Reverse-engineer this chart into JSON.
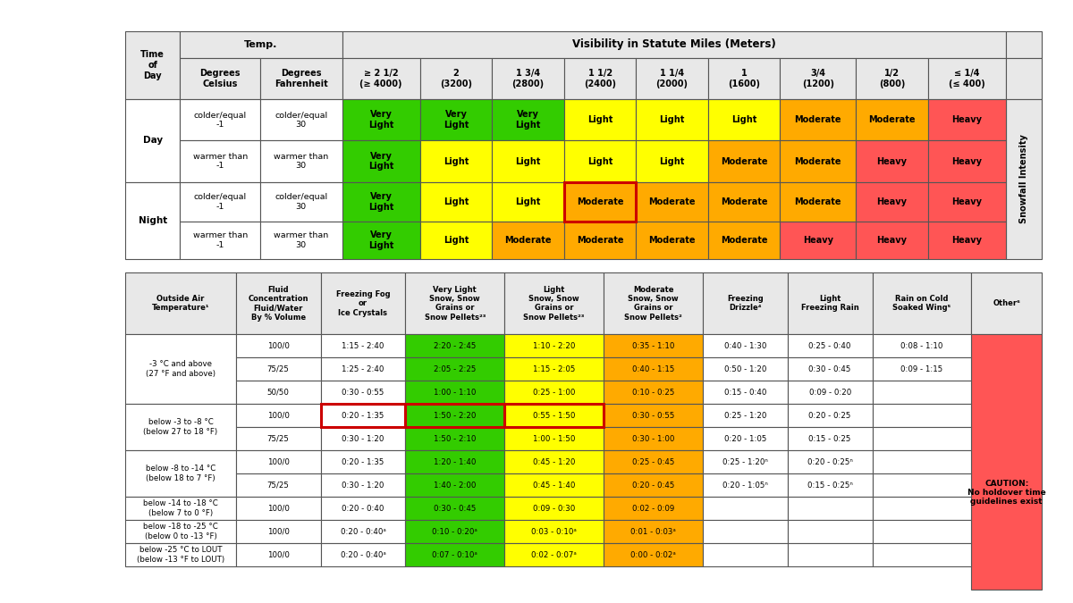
{
  "t1_rows": [
    [
      "Day",
      "colder/equal\n-1",
      "colder/equal\n30",
      "Very\nLight",
      "Very\nLight",
      "Very\nLight",
      "Light",
      "Light",
      "Light",
      "Moderate",
      "Moderate",
      "Heavy"
    ],
    [
      "Day",
      "warmer than\n-1",
      "warmer than\n30",
      "Very\nLight",
      "Light",
      "Light",
      "Light",
      "Light",
      "Moderate",
      "Moderate",
      "Heavy",
      "Heavy"
    ],
    [
      "Night",
      "colder/equal\n-1",
      "colder/equal\n30",
      "Very\nLight",
      "Light",
      "Light",
      "Moderate",
      "Moderate",
      "Moderate",
      "Moderate",
      "Heavy",
      "Heavy"
    ],
    [
      "Night",
      "warmer than\n-1",
      "warmer than\n30",
      "Very\nLight",
      "Light",
      "Moderate",
      "Moderate",
      "Moderate",
      "Moderate",
      "Heavy",
      "Heavy",
      "Heavy"
    ]
  ],
  "t1_colors": [
    [
      "w",
      "w",
      "w",
      "#33cc00",
      "#33cc00",
      "#33cc00",
      "#ffff00",
      "#ffff00",
      "#ffff00",
      "#ffaa00",
      "#ffaa00",
      "#ff5555"
    ],
    [
      "w",
      "w",
      "w",
      "#33cc00",
      "#ffff00",
      "#ffff00",
      "#ffff00",
      "#ffff00",
      "#ffaa00",
      "#ffaa00",
      "#ff5555",
      "#ff5555"
    ],
    [
      "w",
      "w",
      "w",
      "#33cc00",
      "#ffff00",
      "#ffff00",
      "#ffaa00",
      "#ffaa00",
      "#ffaa00",
      "#ffaa00",
      "#ff5555",
      "#ff5555"
    ],
    [
      "w",
      "w",
      "w",
      "#33cc00",
      "#ffff00",
      "#ffaa00",
      "#ffaa00",
      "#ffaa00",
      "#ffaa00",
      "#ff5555",
      "#ff5555",
      "#ff5555"
    ]
  ],
  "t1_highlight": [
    2,
    6
  ],
  "t2_headers": [
    "Outside Air\nTemperature¹",
    "Fluid\nConcentration\nFluid/Water\nBy % Volume",
    "Freezing Fog\nor\nIce Crystals",
    "Very Light\nSnow, Snow\nGrains or\nSnow Pellets²³",
    "Light\nSnow, Snow\nGrains or\nSnow Pellets²³",
    "Moderate\nSnow, Snow\nGrains or\nSnow Pellets²",
    "Freezing\nDrizzle⁴",
    "Light\nFreezing Rain",
    "Rain on Cold\nSoaked Wing⁵",
    "Other⁶"
  ],
  "t2_groups": [
    {
      "label": "-3 °C and above\n(27 °F and above)",
      "rows": [
        [
          "100/0",
          "1:15 - 2:40",
          "2:20 - 2:45",
          "1:10 - 2:20",
          "0:35 - 1:10",
          "0:40 - 1:30",
          "0:25 - 0:40",
          "0:08 - 1:10"
        ],
        [
          "75/25",
          "1:25 - 2:40",
          "2:05 - 2:25",
          "1:15 - 2:05",
          "0:40 - 1:15",
          "0:50 - 1:20",
          "0:30 - 0:45",
          "0:09 - 1:15"
        ],
        [
          "50/50",
          "0:30 - 0:55",
          "1:00 - 1:10",
          "0:25 - 1:00",
          "0:10 - 0:25",
          "0:15 - 0:40",
          "0:09 - 0:20",
          ""
        ]
      ],
      "colors": [
        [
          "w",
          "w",
          "#33cc00",
          "#ffff00",
          "#ffaa00",
          "w",
          "w",
          "w"
        ],
        [
          "w",
          "w",
          "#33cc00",
          "#ffff00",
          "#ffaa00",
          "w",
          "w",
          "w"
        ],
        [
          "w",
          "w",
          "#33cc00",
          "#ffff00",
          "#ffaa00",
          "w",
          "w",
          "w"
        ]
      ]
    },
    {
      "label": "below -3 to -8 °C\n(below 27 to 18 °F)",
      "rows": [
        [
          "100/0",
          "0:20 - 1:35",
          "1:50 - 2:20",
          "0:55 - 1:50",
          "0:30 - 0:55",
          "0:25 - 1:20",
          "0:20 - 0:25",
          ""
        ],
        [
          "75/25",
          "0:30 - 1:20",
          "1:50 - 2:10",
          "1:00 - 1:50",
          "0:30 - 1:00",
          "0:20 - 1:05",
          "0:15 - 0:25",
          ""
        ]
      ],
      "colors": [
        [
          "w",
          "w",
          "#33cc00",
          "#ffff00",
          "#ffaa00",
          "w",
          "w",
          "w"
        ],
        [
          "w",
          "w",
          "#33cc00",
          "#ffff00",
          "#ffaa00",
          "w",
          "w",
          "w"
        ]
      ],
      "highlight_row": 0
    },
    {
      "label": "below -8 to -14 °C\n(below 18 to 7 °F)",
      "rows": [
        [
          "100/0",
          "0:20 - 1:35",
          "1:20 - 1:40",
          "0:45 - 1:20",
          "0:25 - 0:45",
          "0:25 - 1:20ⁿ",
          "0:20 - 0:25ⁿ",
          ""
        ],
        [
          "75/25",
          "0:30 - 1:20",
          "1:40 - 2:00",
          "0:45 - 1:40",
          "0:20 - 0:45",
          "0:20 - 1:05ⁿ",
          "0:15 - 0:25ⁿ",
          ""
        ]
      ],
      "colors": [
        [
          "w",
          "w",
          "#33cc00",
          "#ffff00",
          "#ffaa00",
          "w",
          "w",
          "w"
        ],
        [
          "w",
          "w",
          "#33cc00",
          "#ffff00",
          "#ffaa00",
          "w",
          "w",
          "w"
        ]
      ]
    },
    {
      "label": "below -14 to -18 °C\n(below 7 to 0 °F)",
      "rows": [
        [
          "100/0",
          "0:20 - 0:40",
          "0:30 - 0:45",
          "0:09 - 0:30",
          "0:02 - 0:09",
          "",
          "",
          ""
        ]
      ],
      "colors": [
        [
          "w",
          "w",
          "#33cc00",
          "#ffff00",
          "#ffaa00",
          "w",
          "w",
          "w"
        ]
      ]
    },
    {
      "label": "below -18 to -25 °C\n(below 0 to -13 °F)",
      "rows": [
        [
          "100/0",
          "0:20 - 0:40ᵃ",
          "0:10 - 0:20ᵃ",
          "0:03 - 0:10ᵃ",
          "0:01 - 0:03ᵃ",
          "",
          "",
          ""
        ]
      ],
      "colors": [
        [
          "w",
          "w",
          "#33cc00",
          "#ffff00",
          "#ffaa00",
          "w",
          "w",
          "w"
        ]
      ]
    },
    {
      "label": "below -25 °C to LOUT\n(below -13 °F to LOUT)",
      "rows": [
        [
          "100/0",
          "0:20 - 0:40ᵃ",
          "0:07 - 0:10ᵃ",
          "0:02 - 0:07ᵃ",
          "0:00 - 0:02ᵃ",
          "",
          "",
          ""
        ]
      ],
      "colors": [
        [
          "w",
          "w",
          "#33cc00",
          "#ffff00",
          "#ffaa00",
          "w",
          "w",
          "w"
        ]
      ]
    }
  ],
  "caution_text": "CAUTION:\nNo holdover time\nguidelines exist",
  "hdr_bg": "#e8e8e8",
  "border_color": "#555555",
  "highlight_color": "#cc0000"
}
